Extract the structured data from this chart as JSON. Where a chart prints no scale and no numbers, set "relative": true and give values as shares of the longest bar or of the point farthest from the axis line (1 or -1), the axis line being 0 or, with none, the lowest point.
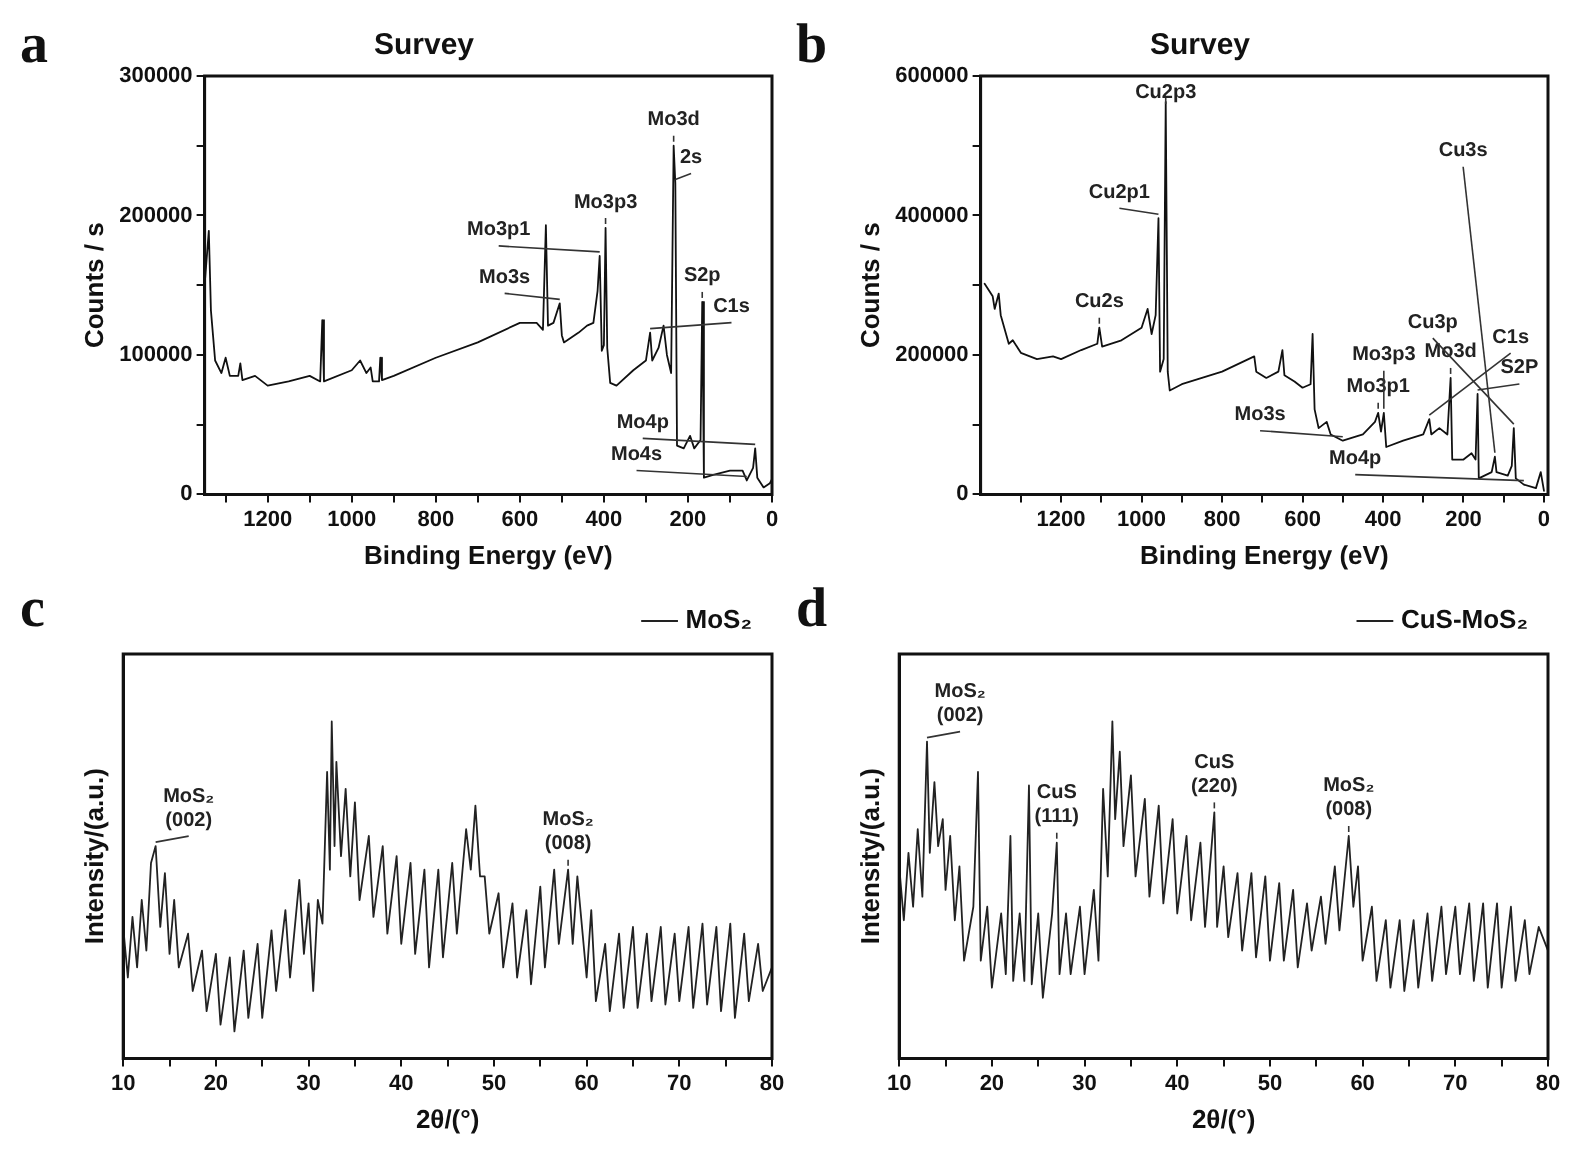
{
  "chart_data": [
    {
      "type": "line",
      "title": "Survey",
      "xlabel": "Binding Energy (eV)",
      "ylabel": "Counts / s",
      "xlim": [
        1350,
        0
      ],
      "ylim": [
        0,
        300000
      ],
      "xticks": [
        0,
        {
          "value": 100,
          "label": null
        },
        200,
        {
          "value": 300,
          "label": null
        },
        400,
        {
          "value": 500,
          "label": null
        },
        600,
        {
          "value": 700,
          "label": null
        },
        800,
        {
          "value": 900,
          "label": null
        },
        1000,
        {
          "value": 1100,
          "label": null
        },
        1200,
        {
          "value": 1300,
          "label": null
        }
      ],
      "yticks": [
        0,
        {
          "value": 50000,
          "label": null
        },
        100000,
        {
          "value": 150000,
          "label": null
        },
        200000,
        {
          "value": 250000,
          "label": null
        },
        300000
      ],
      "series": [
        {
          "color": "#111111",
          "x": [
            1350,
            1340,
            1335,
            1325,
            1310,
            1300,
            1290,
            1270,
            1265,
            1260,
            1230,
            1200,
            1150,
            1100,
            1075,
            1070,
            1066,
            1000,
            980,
            965,
            955,
            950,
            935,
            932,
            928,
            900,
            800,
            700,
            600,
            560,
            545,
            538,
            533,
            520,
            505,
            500,
            495,
            460,
            440,
            425,
            415,
            410,
            405,
            400,
            396,
            392,
            385,
            370,
            330,
            300,
            290,
            285,
            270,
            258,
            250,
            240,
            234,
            230,
            226,
            210,
            195,
            185,
            170,
            166,
            162,
            140,
            100,
            70,
            60,
            45,
            40,
            35,
            20,
            5,
            0
          ],
          "values": [
            150000,
            189000,
            132000,
            96000,
            87000,
            98000,
            85000,
            85000,
            94000,
            82000,
            85000,
            78000,
            81000,
            85000,
            81000,
            125000,
            81000,
            89000,
            96000,
            87000,
            91000,
            81000,
            81000,
            98000,
            82000,
            85000,
            98000,
            109000,
            123000,
            123000,
            118000,
            193000,
            121000,
            123000,
            137000,
            114000,
            109000,
            116000,
            121000,
            123000,
            146000,
            171000,
            103000,
            107000,
            191000,
            105000,
            80000,
            78000,
            89000,
            96000,
            116000,
            96000,
            105000,
            121000,
            100000,
            87000,
            250000,
            223000,
            35000,
            33000,
            42000,
            33000,
            39000,
            138000,
            12000,
            14000,
            17000,
            17000,
            10000,
            19000,
            33000,
            12000,
            5000,
            8000,
            11000
          ]
        }
      ],
      "annotations": [
        "a",
        {
          "text": "Mo3p1",
          "x": 410,
          "y": 171000
        },
        {
          "text": "Mo3p3",
          "x": 396,
          "y": 191000
        },
        {
          "text": "Mo3d",
          "x": 234,
          "y": 250000
        },
        {
          "text": "C1s",
          "x": 290,
          "y": 116000
        },
        {
          "text": "2s",
          "x": 230,
          "y": 223000
        },
        {
          "text": "S2p",
          "x": 166,
          "y": 138000
        },
        {
          "text": "Mo3s",
          "x": 505,
          "y": 137000
        },
        {
          "text": "Mo4s",
          "x": 60,
          "y": 10000
        },
        {
          "text": "Mo4p",
          "x": 40,
          "y": 33000
        }
      ]
    },
    {
      "type": "line",
      "title": "Survey",
      "xlabel": "Binding Energy (eV)",
      "ylabel": "Counts / s",
      "xlim": [
        1400,
        -10
      ],
      "ylim": [
        0,
        600000
      ],
      "xticks": [
        0,
        {
          "value": 100,
          "label": null
        },
        200,
        {
          "value": 300,
          "label": null
        },
        400,
        {
          "value": 500,
          "label": null
        },
        600,
        {
          "value": 700,
          "label": null
        },
        800,
        {
          "value": 900,
          "label": null
        },
        1000,
        {
          "value": 1100,
          "label": null
        },
        1200,
        {
          "value": 1300,
          "label": null
        }
      ],
      "yticks": [
        0,
        {
          "value": 100000,
          "label": null
        },
        200000,
        {
          "value": 300000,
          "label": null
        },
        400000,
        {
          "value": 500000,
          "label": null
        },
        600000
      ],
      "series": [
        {
          "color": "#111111",
          "x": [
            1390,
            1370,
            1365,
            1355,
            1350,
            1330,
            1320,
            1300,
            1260,
            1220,
            1200,
            1150,
            1110,
            1105,
            1098,
            1050,
            1000,
            985,
            975,
            965,
            958,
            954,
            945,
            940,
            935,
            930,
            900,
            800,
            720,
            715,
            690,
            660,
            650,
            645,
            620,
            600,
            580,
            575,
            570,
            560,
            540,
            530,
            500,
            450,
            420,
            412,
            405,
            398,
            392,
            350,
            300,
            285,
            280,
            260,
            240,
            232,
            228,
            200,
            180,
            170,
            165,
            162,
            130,
            122,
            118,
            90,
            80,
            75,
            70,
            50,
            20,
            8,
            0
          ],
          "values": [
            302000,
            284000,
            266000,
            288000,
            257000,
            216000,
            221000,
            203000,
            194000,
            198000,
            194000,
            207000,
            216000,
            239000,
            212000,
            221000,
            239000,
            266000,
            230000,
            257000,
            396000,
            176000,
            194000,
            563000,
            176000,
            149000,
            158000,
            176000,
            198000,
            176000,
            167000,
            176000,
            207000,
            171000,
            162000,
            153000,
            158000,
            230000,
            122000,
            95000,
            104000,
            86000,
            77000,
            86000,
            104000,
            117000,
            90000,
            117000,
            68000,
            77000,
            86000,
            108000,
            86000,
            95000,
            86000,
            167000,
            50000,
            50000,
            59000,
            50000,
            144000,
            23000,
            32000,
            54000,
            32000,
            27000,
            41000,
            95000,
            23000,
            14000,
            9000,
            32000,
            5000
          ]
        }
      ],
      "annotations": [
        "b",
        {
          "text": "Cu2p3",
          "x": 940,
          "y": 563000
        },
        {
          "text": "Cu2p1",
          "x": 958,
          "y": 396000
        },
        {
          "text": "Cu2s",
          "x": 1105,
          "y": 239000
        },
        {
          "text": "Mo3p1",
          "x": 412,
          "y": 117000
        },
        {
          "text": "Mo3p3",
          "x": 398,
          "y": 117000
        },
        {
          "text": "Mo3d",
          "x": 232,
          "y": 167000
        },
        {
          "text": "S2P",
          "x": 165,
          "y": 144000
        },
        {
          "text": "C1s",
          "x": 285,
          "y": 108000
        },
        {
          "text": "Cu3s",
          "x": 122,
          "y": 54000
        },
        {
          "text": "Cu3p",
          "x": 75,
          "y": 95000
        },
        {
          "text": "Mo3s",
          "x": 500,
          "y": 77000
        },
        {
          "text": "Mo4p",
          "x": 50,
          "y": 14000
        }
      ]
    },
    {
      "type": "line",
      "xlabel": "2θ/(°)",
      "ylabel": "Intensity/(a.u.)",
      "relative": true,
      "legend": "top right",
      "xlim": [
        10,
        80
      ],
      "xticks": [
        10,
        {
          "value": 15,
          "label": null
        },
        20,
        {
          "value": 25,
          "label": null
        },
        30,
        {
          "value": 35,
          "label": null
        },
        40,
        {
          "value": 45,
          "label": null
        },
        50,
        {
          "value": 55,
          "label": null
        },
        60,
        {
          "value": 65,
          "label": null
        },
        70,
        {
          "value": 75,
          "label": null
        },
        80
      ],
      "series": [
        {
          "name": "MoS₂",
          "color": "#222222",
          "x": [
            10,
            10.5,
            11,
            11.5,
            12,
            12.5,
            13,
            13.5,
            14,
            14.5,
            15,
            15.5,
            16,
            17,
            17.5,
            18.5,
            19,
            20,
            20.5,
            21.5,
            22,
            23,
            23.5,
            24.5,
            25,
            26,
            26.5,
            27.5,
            28,
            29,
            29.5,
            30,
            30.5,
            31,
            31.5,
            32,
            32.3,
            32.5,
            32.8,
            33,
            33.5,
            34,
            34.5,
            35,
            35.5,
            36.5,
            37,
            38,
            38.5,
            39.5,
            40,
            41,
            41.5,
            42.5,
            43,
            44,
            44.5,
            45.5,
            46,
            47,
            47.5,
            48,
            48.5,
            49,
            49.5,
            50.5,
            51,
            52,
            52.5,
            53.5,
            54,
            55,
            55.5,
            56.5,
            57,
            58,
            58.5,
            59,
            60,
            60.5,
            61,
            62,
            62.5,
            63.5,
            64,
            65,
            65.5,
            66.5,
            67,
            68,
            68.5,
            69.5,
            70,
            71,
            71.5,
            72.5,
            73,
            74,
            74.5,
            75.5,
            76,
            77,
            77.5,
            78.5,
            79,
            80
          ],
          "values": [
            0.39,
            0.24,
            0.42,
            0.27,
            0.47,
            0.32,
            0.58,
            0.63,
            0.39,
            0.55,
            0.31,
            0.47,
            0.27,
            0.37,
            0.2,
            0.32,
            0.14,
            0.31,
            0.1,
            0.3,
            0.08,
            0.32,
            0.12,
            0.34,
            0.12,
            0.38,
            0.2,
            0.44,
            0.24,
            0.53,
            0.31,
            0.46,
            0.2,
            0.47,
            0.4,
            0.85,
            0.56,
            1.0,
            0.63,
            0.88,
            0.6,
            0.8,
            0.54,
            0.76,
            0.47,
            0.66,
            0.42,
            0.63,
            0.37,
            0.6,
            0.34,
            0.58,
            0.31,
            0.56,
            0.27,
            0.56,
            0.3,
            0.58,
            0.37,
            0.68,
            0.56,
            0.75,
            0.54,
            0.54,
            0.37,
            0.49,
            0.27,
            0.46,
            0.24,
            0.44,
            0.22,
            0.51,
            0.27,
            0.56,
            0.34,
            0.56,
            0.34,
            0.54,
            0.24,
            0.44,
            0.17,
            0.34,
            0.14,
            0.37,
            0.15,
            0.39,
            0.15,
            0.37,
            0.17,
            0.39,
            0.16,
            0.37,
            0.17,
            0.39,
            0.15,
            0.4,
            0.16,
            0.39,
            0.14,
            0.4,
            0.12,
            0.37,
            0.17,
            0.34,
            0.2,
            0.27
          ]
        }
      ],
      "annotations": [
        "c",
        {
          "text": "MoS₂ (002)",
          "x": 13.5,
          "y": 0.63
        },
        {
          "text": "MoS₂ (008)",
          "x": 58,
          "y": 0.56
        }
      ]
    },
    {
      "type": "line",
      "xlabel": "2θ/(°)",
      "ylabel": "Intensity/(a.u.)",
      "relative": true,
      "legend": "top right",
      "xlim": [
        10,
        80
      ],
      "xticks": [
        10,
        {
          "value": 15,
          "label": null
        },
        20,
        {
          "value": 25,
          "label": null
        },
        30,
        {
          "value": 35,
          "label": null
        },
        40,
        {
          "value": 45,
          "label": null
        },
        50,
        {
          "value": 55,
          "label": null
        },
        60,
        {
          "value": 65,
          "label": null
        },
        70,
        {
          "value": 75,
          "label": null
        },
        80
      ],
      "series": [
        {
          "name": "CuS-MoS₂",
          "color": "#222222",
          "x": [
            10,
            10.5,
            11,
            11.5,
            12,
            12.5,
            13,
            13.3,
            13.8,
            14.2,
            14.7,
            15,
            15.5,
            16,
            16.5,
            17,
            18,
            18.5,
            18.8,
            19.5,
            20,
            21,
            21.5,
            22,
            22.3,
            23,
            23.5,
            24,
            24.3,
            25,
            25.5,
            26.5,
            27,
            27.3,
            28,
            28.5,
            29.5,
            30,
            31,
            31.5,
            32,
            32.5,
            33,
            33.3,
            33.8,
            34.2,
            35,
            35.5,
            36.5,
            37,
            38,
            38.5,
            39.5,
            40,
            41,
            41.5,
            42.5,
            43,
            44,
            44.3,
            45,
            45.5,
            46.5,
            47,
            48,
            48.5,
            49.5,
            50,
            51,
            51.5,
            52.5,
            53,
            54,
            54.5,
            55.5,
            56,
            57,
            57.5,
            58.5,
            59,
            59.5,
            60,
            61,
            61.5,
            62.5,
            63,
            64,
            64.5,
            65.5,
            66,
            67,
            67.5,
            68.5,
            69,
            70,
            70.5,
            71.5,
            72,
            73,
            73.5,
            74.5,
            75,
            76,
            76.5,
            77.5,
            78,
            79,
            80
          ],
          "values": [
            0.57,
            0.41,
            0.61,
            0.45,
            0.68,
            0.48,
            0.94,
            0.61,
            0.82,
            0.63,
            0.71,
            0.5,
            0.66,
            0.41,
            0.57,
            0.29,
            0.45,
            0.85,
            0.29,
            0.45,
            0.21,
            0.43,
            0.25,
            0.66,
            0.23,
            0.43,
            0.23,
            0.81,
            0.22,
            0.43,
            0.18,
            0.43,
            0.64,
            0.25,
            0.43,
            0.25,
            0.45,
            0.25,
            0.5,
            0.29,
            0.8,
            0.54,
            1.0,
            0.71,
            0.91,
            0.63,
            0.84,
            0.54,
            0.77,
            0.48,
            0.75,
            0.46,
            0.71,
            0.43,
            0.66,
            0.41,
            0.64,
            0.39,
            0.73,
            0.39,
            0.57,
            0.36,
            0.55,
            0.32,
            0.55,
            0.3,
            0.54,
            0.29,
            0.52,
            0.29,
            0.5,
            0.27,
            0.46,
            0.32,
            0.48,
            0.34,
            0.57,
            0.38,
            0.66,
            0.45,
            0.57,
            0.29,
            0.45,
            0.23,
            0.41,
            0.21,
            0.41,
            0.2,
            0.41,
            0.21,
            0.43,
            0.23,
            0.45,
            0.25,
            0.45,
            0.25,
            0.46,
            0.23,
            0.46,
            0.21,
            0.46,
            0.21,
            0.45,
            0.23,
            0.41,
            0.25,
            0.39,
            0.32
          ]
        }
      ],
      "annotations": [
        "d",
        {
          "text": "MoS₂ (002)",
          "x": 13,
          "y": 0.94
        },
        {
          "text": "CuS (111)",
          "x": 27,
          "y": 0.64
        },
        {
          "text": "CuS (220)",
          "x": 44,
          "y": 0.73
        },
        {
          "text": "MoS₂ (008)",
          "x": 58.5,
          "y": 0.66
        }
      ]
    }
  ]
}
